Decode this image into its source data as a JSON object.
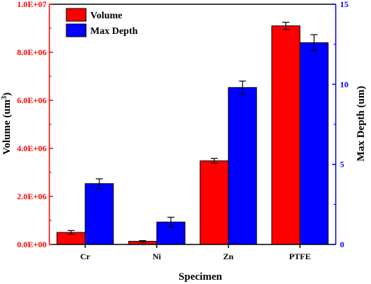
{
  "chart_data": {
    "type": "bar",
    "categories": [
      "Cr",
      "Ni",
      "Zn",
      "PTFE"
    ],
    "series": [
      {
        "name": "Volume",
        "axis": "left",
        "color": "#ff0000",
        "values": [
          500000,
          130000,
          3480000,
          9100000
        ],
        "errors": [
          80000,
          30000,
          100000,
          150000
        ]
      },
      {
        "name": "Max Depth",
        "axis": "right",
        "color": "#0000ff",
        "values": [
          3.8,
          1.4,
          9.8,
          12.6
        ],
        "errors": [
          0.3,
          0.3,
          0.4,
          0.5
        ]
      }
    ],
    "xlabel": "Specimen",
    "ylabel_left": {
      "text": "Volume (um",
      "sup": "3",
      "suffix": ")"
    },
    "ylabel_right": "Max Depth (um)",
    "ylim_left": [
      0,
      10000000
    ],
    "ylim_right": [
      0,
      15
    ],
    "left_ticks": [
      "0.0E+00",
      "2.0E+06",
      "4.0E+06",
      "6.0E+06",
      "8.0E+06",
      "1.0E+07"
    ],
    "right_ticks": [
      "0",
      "5",
      "10",
      "15"
    ],
    "left_axis_color": "#ff0000",
    "right_axis_color": "#0000ff",
    "grid": false,
    "legend_position": "top-left"
  }
}
